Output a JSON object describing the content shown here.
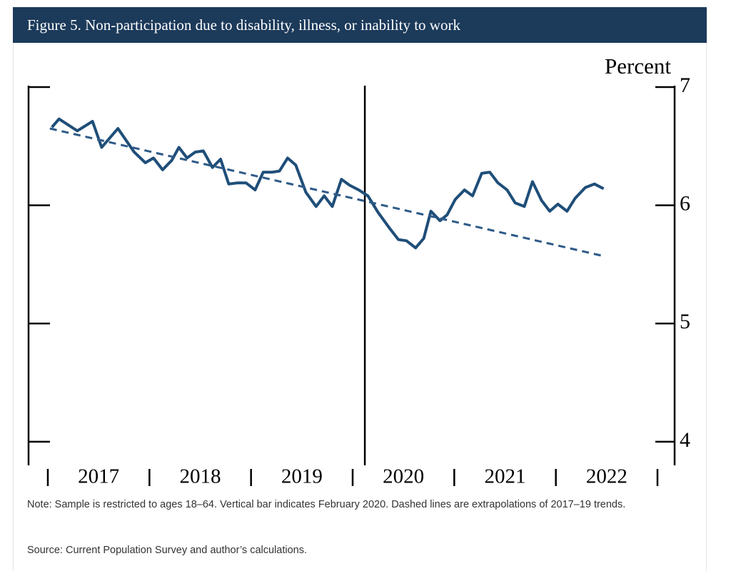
{
  "header": {
    "title": "Figure 5. Non-participation due to disability, illness, or inability to work"
  },
  "chart_data": {
    "type": "line",
    "y_label": "Percent",
    "ylim": [
      3.8,
      7
    ],
    "yticks": [
      4,
      5,
      6,
      7
    ],
    "xlim": [
      2016.8,
      2023.2
    ],
    "xticks": [
      2017,
      2018,
      2019,
      2020,
      2021,
      2022,
      2023
    ],
    "year_labels": [
      "2017",
      "2018",
      "2019",
      "2020",
      "2021",
      "2022"
    ],
    "vline_x": 2020.12,
    "series": [
      {
        "color": "#1f4e79",
        "style": "solid",
        "x": [
          2017.04,
          2017.11,
          2017.29,
          2017.44,
          2017.53,
          2017.69,
          2017.85,
          2017.96,
          2018.04,
          2018.13,
          2018.22,
          2018.29,
          2018.37,
          2018.45,
          2018.53,
          2018.62,
          2018.7,
          2018.78,
          2018.87,
          2018.95,
          2019.04,
          2019.12,
          2019.21,
          2019.28,
          2019.36,
          2019.44,
          2019.54,
          2019.64,
          2019.72,
          2019.8,
          2019.89,
          2019.97,
          2020.06,
          2020.15,
          2020.25,
          2020.36,
          2020.45,
          2020.53,
          2020.62,
          2020.7,
          2020.77,
          2020.86,
          2020.93,
          2021.01,
          2021.1,
          2021.18,
          2021.27,
          2021.35,
          2021.43,
          2021.52,
          2021.6,
          2021.69,
          2021.77,
          2021.86,
          2021.94,
          2022.02,
          2022.11,
          2022.19,
          2022.29,
          2022.38,
          2022.47
        ],
        "values": [
          6.66,
          6.73,
          6.63,
          6.71,
          6.49,
          6.65,
          6.45,
          6.36,
          6.4,
          6.3,
          6.38,
          6.49,
          6.4,
          6.45,
          6.46,
          6.32,
          6.39,
          6.18,
          6.19,
          6.19,
          6.13,
          6.28,
          6.28,
          6.29,
          6.4,
          6.34,
          6.11,
          5.99,
          6.08,
          5.99,
          6.22,
          6.17,
          6.13,
          6.08,
          5.94,
          5.81,
          5.71,
          5.7,
          5.64,
          5.72,
          5.95,
          5.87,
          5.92,
          6.05,
          6.13,
          6.08,
          6.27,
          6.28,
          6.19,
          6.13,
          6.02,
          5.99,
          6.2,
          6.04,
          5.95,
          6.01,
          5.95,
          6.06,
          6.15,
          6.18,
          6.14
        ]
      },
      {
        "color": "#2e5a88",
        "style": "dashed",
        "x": [
          2017.02,
          2022.47
        ],
        "values": [
          6.65,
          5.57
        ]
      }
    ]
  },
  "note": "Note: Sample is restricted to ages 18–64. Vertical bar indicates February 2020. Dashed lines are extrapolations of 2017–19 trends.",
  "source": "Source: Current Population Survey and author’s calculations."
}
